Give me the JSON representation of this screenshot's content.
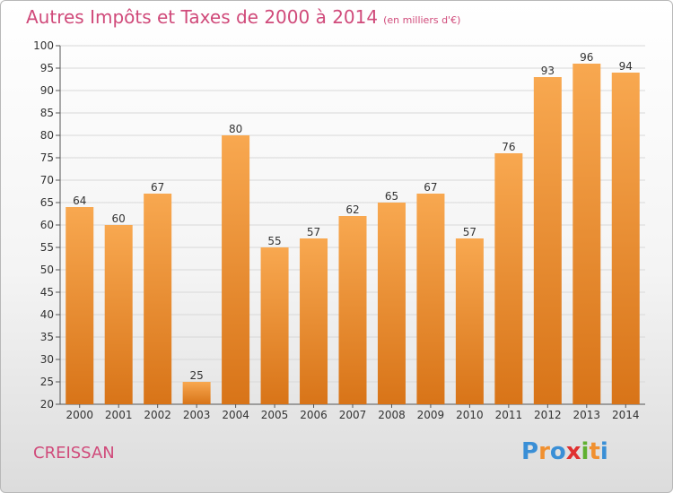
{
  "header": {
    "title": "Autres Impôts et Taxes de 2000 à 2014",
    "subtitle": "(en milliers d'€)"
  },
  "footer": {
    "commune": "CREISSAN",
    "logo_text": "Proxiti",
    "logo_letters": [
      "P",
      "r",
      "o",
      "x",
      "i",
      "t",
      "i"
    ],
    "logo_colors": [
      "#3a8fd6",
      "#f09030",
      "#3a8fd6",
      "#e03030",
      "#60b030",
      "#f09030",
      "#3a8fd6"
    ]
  },
  "colors": {
    "bar_top": "#f8a850",
    "bar_bottom": "#d87418",
    "accent": "#d04a7a"
  },
  "chart_data": {
    "type": "bar",
    "categories": [
      "2000",
      "2001",
      "2002",
      "2003",
      "2004",
      "2005",
      "2006",
      "2007",
      "2008",
      "2009",
      "2010",
      "2011",
      "2012",
      "2013",
      "2014"
    ],
    "values": [
      64,
      60,
      67,
      25,
      80,
      55,
      57,
      62,
      65,
      67,
      57,
      76,
      93,
      96,
      94
    ],
    "title": "Autres Impôts et Taxes de 2000 à 2014",
    "subtitle": "(en milliers d'€)",
    "ylim": [
      20,
      100
    ],
    "yticks": [
      20,
      25,
      30,
      35,
      40,
      45,
      50,
      55,
      60,
      65,
      70,
      75,
      80,
      85,
      90,
      95,
      100
    ],
    "grid": true,
    "data_labels": true
  }
}
